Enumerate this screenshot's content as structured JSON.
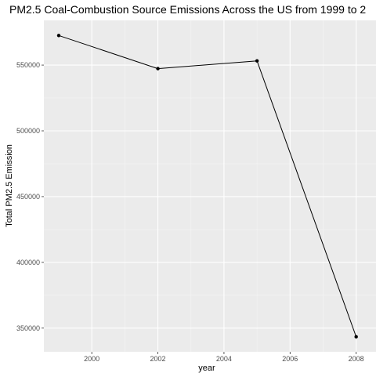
{
  "chart_data": {
    "type": "line",
    "title": "PM2.5 Coal-Combustion Source Emissions Across the US from 1999 to 2",
    "xlabel": "year",
    "ylabel": "Total PM2.5 Emission",
    "x": [
      1999,
      2002,
      2005,
      2008
    ],
    "y": [
      572500,
      547300,
      553200,
      343400
    ],
    "xlim": [
      1998.55,
      2008.6
    ],
    "ylim": [
      332000,
      584000
    ],
    "x_ticks": [
      2000,
      2002,
      2004,
      2006,
      2008
    ],
    "x_tick_labels": [
      "2000",
      "2002",
      "2004",
      "2006",
      "2008"
    ],
    "y_ticks": [
      350000,
      400000,
      450000,
      500000,
      550000
    ],
    "y_tick_labels": [
      "350000",
      "400000",
      "450000",
      "500000",
      "550000"
    ],
    "grid": true,
    "colors": {
      "panel_background": "#ebebeb",
      "grid_major": "#ffffff",
      "grid_minor": "#f5f5f5",
      "line": "#000000",
      "axis_text": "#4d4d4d",
      "title": "#000000"
    }
  }
}
